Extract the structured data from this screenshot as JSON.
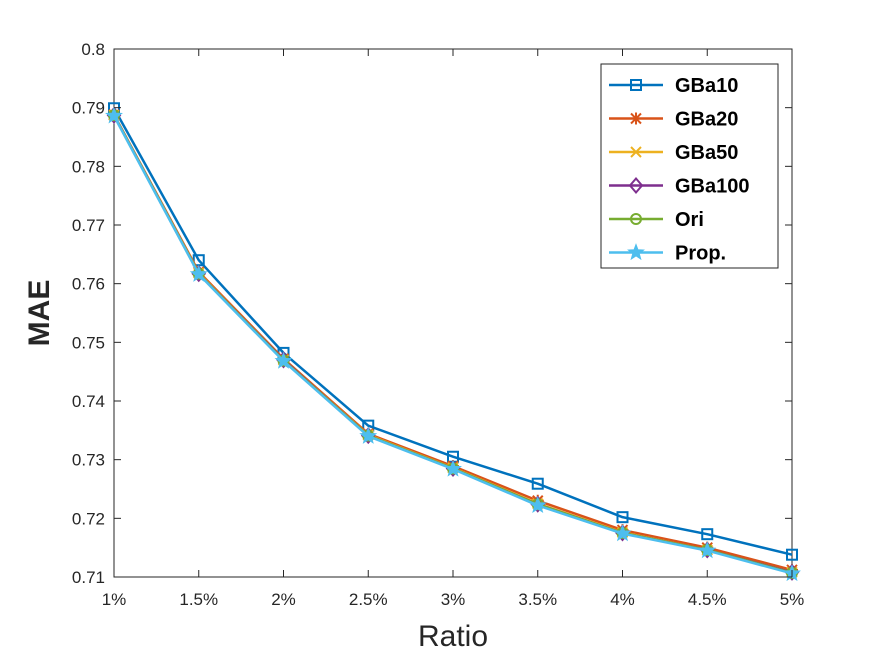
{
  "chart_data": {
    "type": "line",
    "title": "",
    "xlabel": "Ratio",
    "ylabel": "MAE",
    "categories": [
      "1%",
      "1.5%",
      "2%",
      "2.5%",
      "3%",
      "3.5%",
      "4%",
      "4.5%",
      "5%"
    ],
    "yticks": [
      "0.71",
      "0.72",
      "0.73",
      "0.74",
      "0.75",
      "0.76",
      "0.77",
      "0.78",
      "0.79",
      "0.8"
    ],
    "ylim": [
      0.71,
      0.8
    ],
    "grid": false,
    "legend_position": "top-right",
    "series": [
      {
        "name": "GBa10",
        "color": "#0072BD",
        "marker": "square",
        "values": [
          0.7899,
          0.764,
          0.7482,
          0.7358,
          0.7305,
          0.7259,
          0.7202,
          0.7173,
          0.7138
        ]
      },
      {
        "name": "GBa20",
        "color": "#D95319",
        "marker": "asterisk",
        "values": [
          0.7888,
          0.762,
          0.7472,
          0.7344,
          0.7289,
          0.723,
          0.718,
          0.715,
          0.7112
        ]
      },
      {
        "name": "GBa50",
        "color": "#EDB120",
        "marker": "x",
        "values": [
          0.7887,
          0.7618,
          0.747,
          0.7342,
          0.7286,
          0.7225,
          0.7176,
          0.7146,
          0.7108
        ]
      },
      {
        "name": "GBa100",
        "color": "#7E2F8E",
        "marker": "diamond",
        "values": [
          0.7887,
          0.7617,
          0.747,
          0.7341,
          0.7285,
          0.7224,
          0.7175,
          0.7146,
          0.7108
        ]
      },
      {
        "name": "Ori",
        "color": "#77AC30",
        "marker": "circle",
        "values": [
          0.7887,
          0.7617,
          0.7469,
          0.7341,
          0.7285,
          0.7224,
          0.7175,
          0.7146,
          0.7107
        ]
      },
      {
        "name": "Prop.",
        "color": "#4DBEEE",
        "marker": "star",
        "values": [
          0.7886,
          0.7616,
          0.7468,
          0.734,
          0.7284,
          0.7222,
          0.7174,
          0.7145,
          0.7106
        ]
      }
    ]
  }
}
